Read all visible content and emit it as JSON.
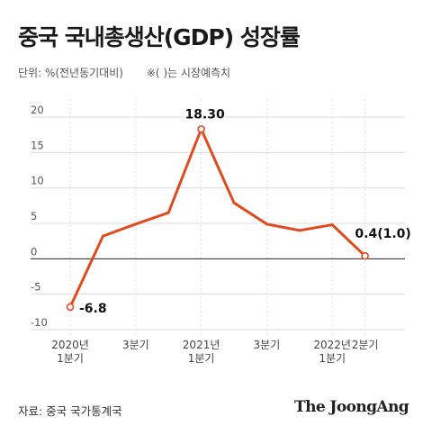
{
  "title": "중국 국내총생산(GDP) 성장률",
  "unit_note": "단위: %(전년동기대비)",
  "paren_note": "※(  )는 시장예측치",
  "source": "자료: 중국 국가통계국",
  "brand": "The JoongAng",
  "colors": {
    "line": "#e04a1f",
    "grid": "#dcdcdc",
    "axis": "#222222",
    "tick_text": "#555555"
  },
  "chart_data": {
    "type": "line",
    "title": "중국 국내총생산(GDP) 성장률",
    "xlabel": "",
    "ylabel": "",
    "ylim": [
      -10,
      20
    ],
    "yticks": [
      -10,
      -5,
      0,
      5,
      10,
      15,
      20
    ],
    "ytick_labels": [
      "-10",
      "-5",
      "0",
      "5",
      "10",
      "15",
      "20"
    ],
    "grid": true,
    "x_positions": 10,
    "x_tick_labels": [
      {
        "index": 0,
        "lines": [
          "2020년",
          "1분기"
        ]
      },
      {
        "index": 2,
        "lines": [
          "3분기"
        ]
      },
      {
        "index": 4,
        "lines": [
          "2021년",
          "1분기"
        ]
      },
      {
        "index": 6,
        "lines": [
          "3분기"
        ]
      },
      {
        "index": 8,
        "lines": [
          "2022년",
          "1분기"
        ]
      },
      {
        "index": 9,
        "lines": [
          "2분기"
        ]
      }
    ],
    "series": [
      {
        "values": [
          -6.8,
          3.2,
          4.9,
          6.5,
          18.3,
          7.9,
          4.9,
          4.0,
          4.8,
          0.4
        ]
      }
    ],
    "annotations": [
      {
        "index": 0,
        "text": "-6.8"
      },
      {
        "index": 4,
        "text": "18.30"
      },
      {
        "index": 9,
        "text": "0.4(1.0)"
      }
    ]
  }
}
